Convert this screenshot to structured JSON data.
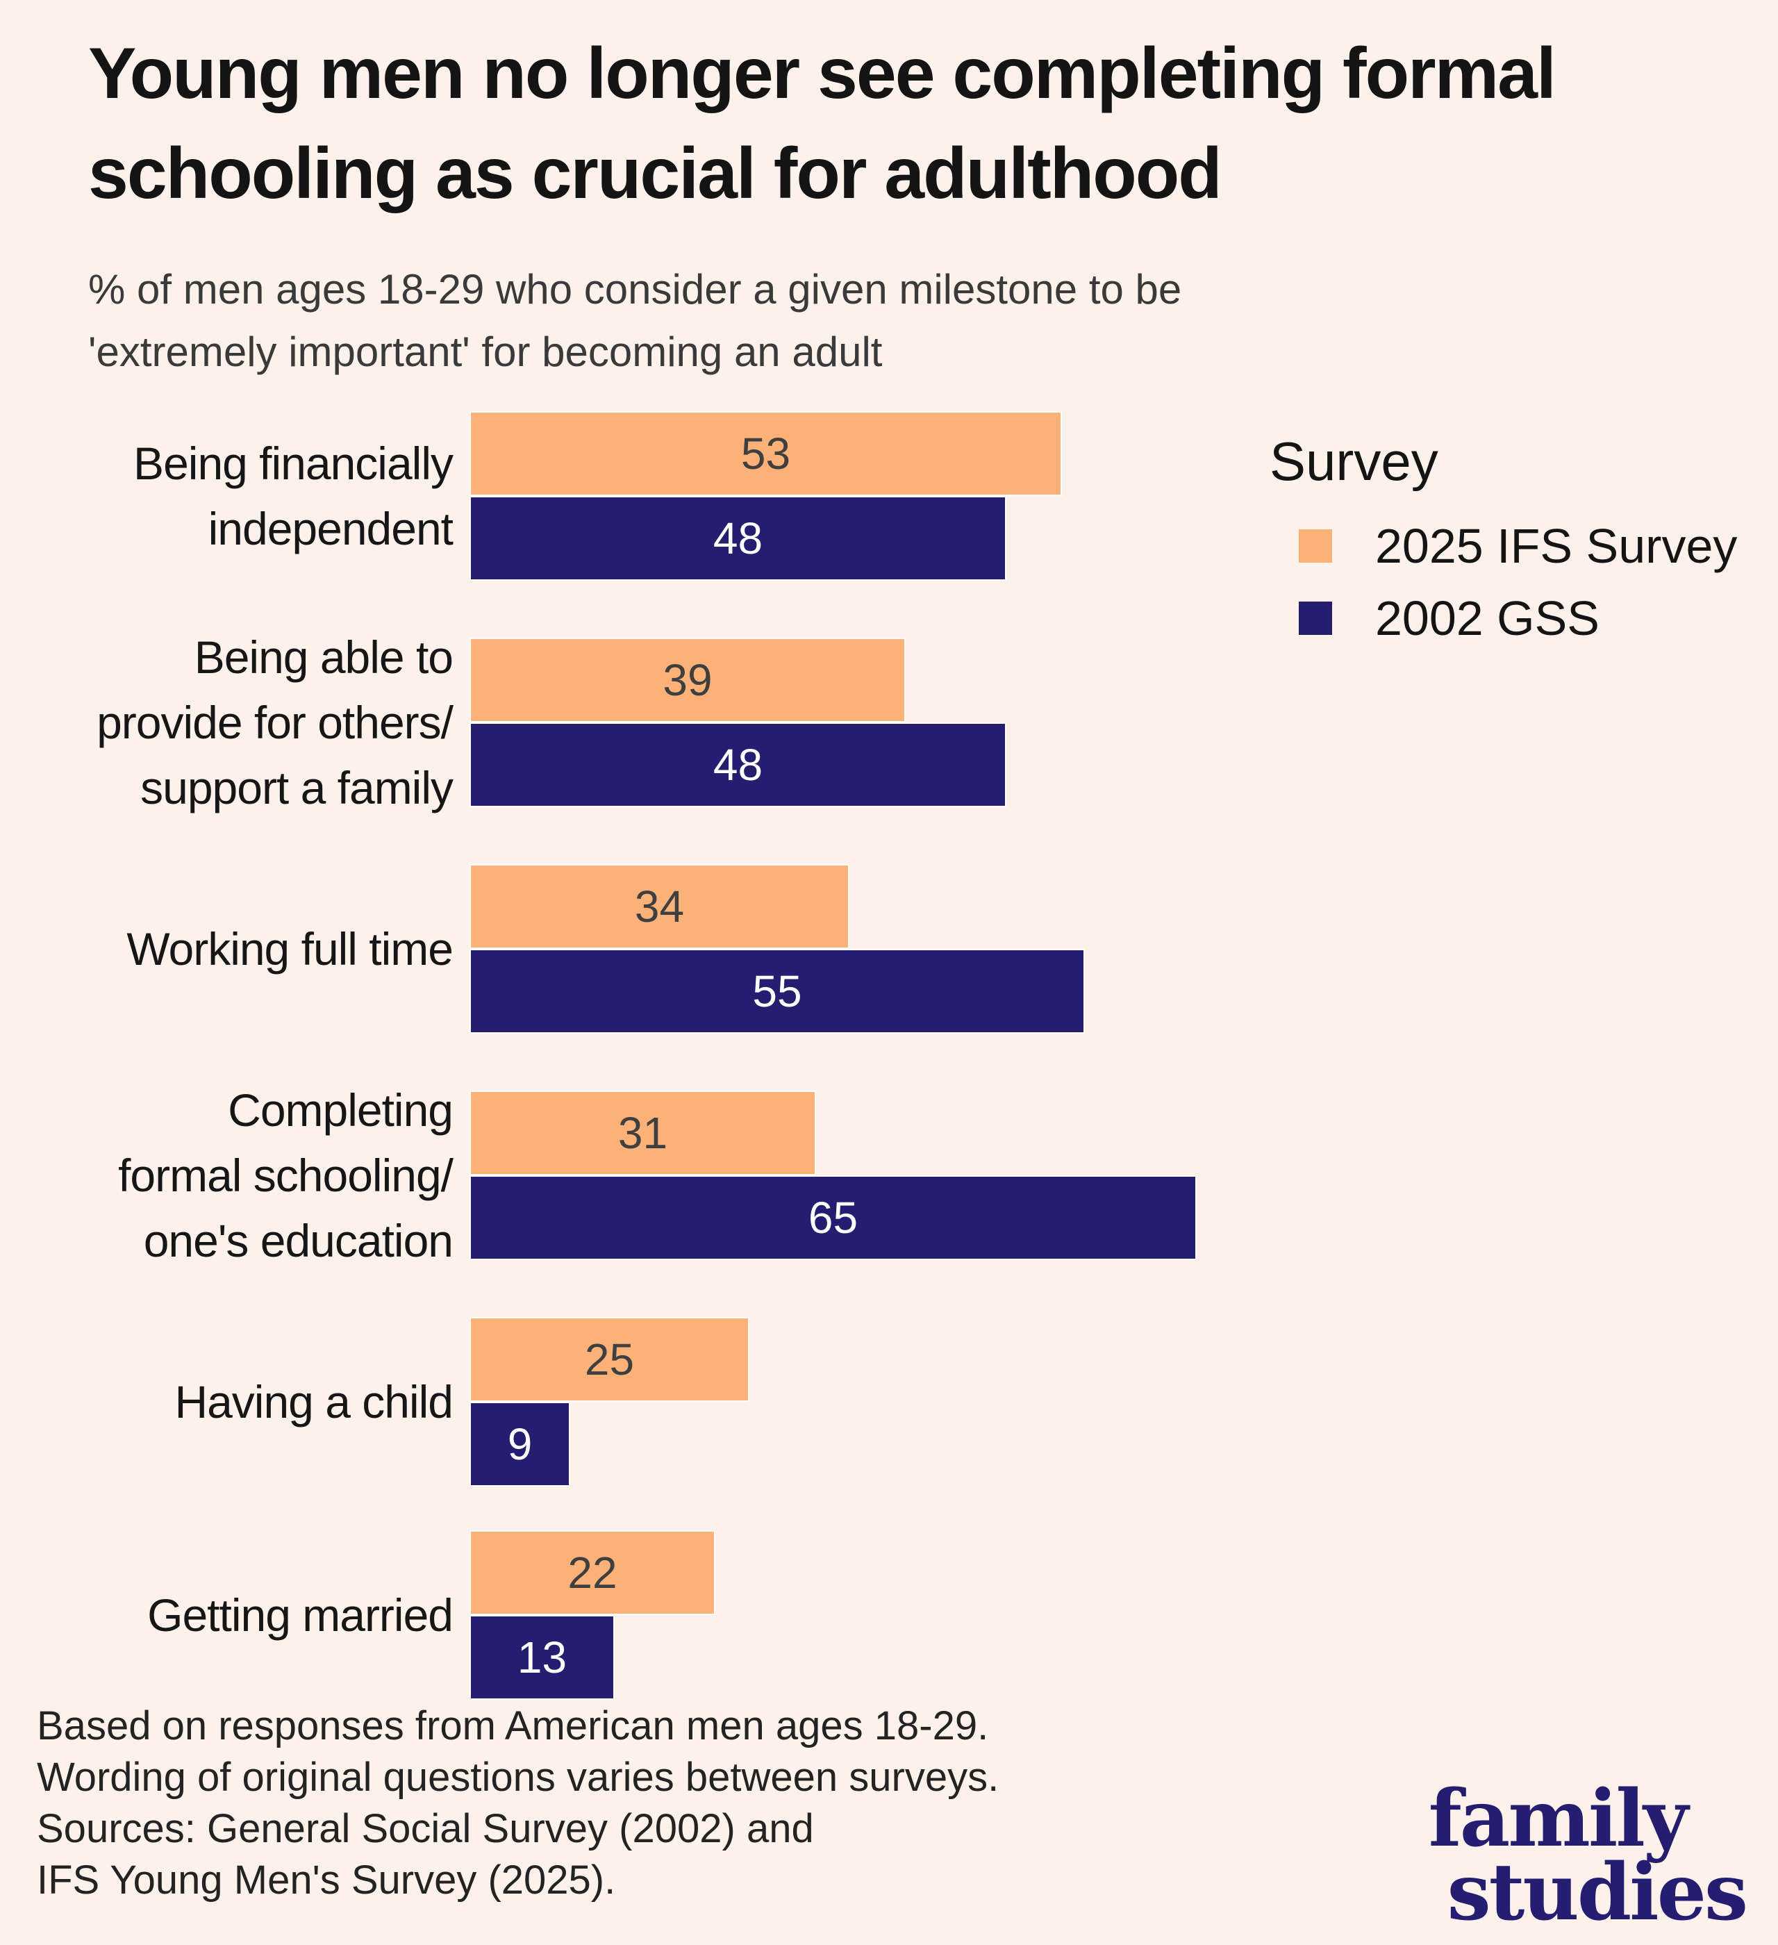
{
  "title": {
    "lines": [
      "Young men no longer see completing formal",
      "schooling as crucial for adulthood"
    ]
  },
  "subtitle": {
    "lines": [
      "% of men ages 18-29 who consider a given milestone to be",
      "'extremely important' for becoming an adult"
    ]
  },
  "legend": {
    "title": "Survey",
    "items": [
      {
        "label": "2025 IFS Survey",
        "color": "#FBB178"
      },
      {
        "label": "2002 GSS",
        "color": "#251D70"
      }
    ]
  },
  "chart_data": {
    "type": "bar",
    "orientation": "horizontal",
    "value_unit": "percent of men ages 18-29",
    "xlim": [
      0,
      100
    ],
    "grid": false,
    "value_labels_shown": true,
    "legend_position": "top-right",
    "categories": [
      {
        "label": "Being financially independent",
        "lines": [
          "Being financially",
          "independent"
        ]
      },
      {
        "label": "Being able to provide for others/ support a family",
        "lines": [
          "Being able to",
          "provide for others/",
          "support a family"
        ]
      },
      {
        "label": "Working full time",
        "lines": [
          "Working full time"
        ]
      },
      {
        "label": "Completing formal schooling/ one's education",
        "lines": [
          "Completing",
          "formal schooling/",
          "one's education"
        ]
      },
      {
        "label": "Having a child",
        "lines": [
          "Having a child"
        ]
      },
      {
        "label": "Getting married",
        "lines": [
          "Getting married"
        ]
      }
    ],
    "series": [
      {
        "name": "2025 IFS Survey",
        "color": "#FBB178",
        "value_color": "#3F3F3F",
        "values": [
          53,
          39,
          34,
          31,
          25,
          22
        ]
      },
      {
        "name": "2002 GSS",
        "color": "#251D70",
        "value_color": "#FFFFFF",
        "values": [
          48,
          48,
          55,
          65,
          9,
          13
        ]
      }
    ]
  },
  "footer": {
    "lines": [
      "Based on responses from American men ages 18-29.",
      "Wording of original questions varies between surveys.",
      "Sources: General Social Survey (2002) and",
      "IFS Young Men's Survey (2025)."
    ]
  },
  "logo": {
    "lines": [
      "family",
      "studies"
    ],
    "color": "#251D70"
  },
  "colors": {
    "background": "#FCF2EB",
    "title": "#141414",
    "subtitle": "#3A3A3A",
    "category_label": "#161616",
    "footer": "#232323",
    "bar_border": "#FFFFFF"
  }
}
